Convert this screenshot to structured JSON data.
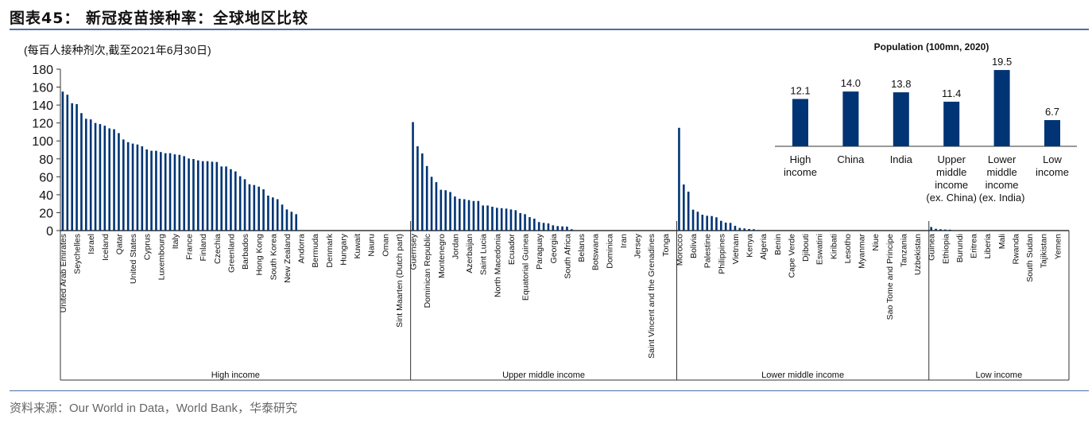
{
  "title": "图表45：  新冠疫苗接种率：全球地区比较",
  "unit_note": "(每百人接种剂次,截至2021年6月30日)",
  "source": "资料来源：Our World in Data，World Bank，华泰研究",
  "colors": {
    "bar": "#003474",
    "rule": "#4d6fa8",
    "axis": "#333333"
  },
  "chart_data": [
    {
      "type": "bar",
      "ylim": [
        0,
        180
      ],
      "yticks": [
        0,
        20,
        40,
        60,
        80,
        100,
        120,
        140,
        160,
        180
      ],
      "grid": false,
      "label_every": 3,
      "groups": [
        {
          "name": "High income",
          "slots": 75,
          "tick_labels": [
            "United Arab Emirates",
            "Seychelles",
            "Israel",
            "Iceland",
            "Qatar",
            "United States",
            "Cyprus",
            "Luxembourg",
            "Italy",
            "France",
            "Finland",
            "Czechia",
            "Greenland",
            "Barbados",
            "Hong Kong",
            "South Korea",
            "New Zealand",
            "Andorra",
            "Bermuda",
            "Denmark",
            "Hungary",
            "Kuwait",
            "Nauru",
            "Oman",
            "Sint Maarten (Dutch part)"
          ],
          "values": [
            155,
            151.5,
            142,
            141,
            131,
            124.7,
            124,
            120,
            118.8,
            117,
            114,
            113,
            108.7,
            101.6,
            98.6,
            97,
            96,
            94,
            90.5,
            89,
            89,
            87.6,
            86.3,
            86.3,
            85,
            84.5,
            83,
            80.4,
            79.8,
            78.3,
            77.4,
            77.4,
            76.8,
            76.5,
            71.5,
            71.5,
            68.5,
            66,
            60.6,
            57.3,
            51.7,
            50.8,
            49,
            46,
            39,
            37,
            35,
            29,
            23.6,
            21,
            18.3
          ]
        },
        {
          "name": "Upper middle income",
          "slots": 57,
          "tick_labels": [
            "Guernsey",
            "Dominican Republic",
            "Montenegro",
            "Jordan",
            "Azerbaijan",
            "Saint Lucia",
            "North Macedonia",
            "Ecuador",
            "Equatorial Guinea",
            "Paraguay",
            "Georgia",
            "South Africa",
            "Belarus",
            "Botswana",
            "Dominica",
            "Iran",
            "Jersey",
            "Saint Vincent and the Grenadines",
            "Tonga"
          ],
          "values": [
            121,
            94,
            86,
            72,
            60,
            54,
            45.5,
            45,
            43,
            38,
            35.5,
            35,
            34,
            33,
            33,
            28,
            28,
            26.6,
            25.4,
            25,
            24.5,
            23.6,
            22.7,
            19.5,
            18.3,
            15,
            13.3,
            9.5,
            8.6,
            8,
            5.9,
            5,
            4.7,
            4.4,
            1.5
          ]
        },
        {
          "name": "Lower middle income",
          "slots": 54,
          "tick_labels": [
            "Morocco",
            "Bolivia",
            "Palestine",
            "Philippines",
            "Vietnam",
            "Kenya",
            "Algeria",
            "Benin",
            "Cape Verde",
            "Djibouti",
            "Eswatini",
            "Kiribati",
            "Lesotho",
            "Myanmar",
            "Niue",
            "Sao Tome and Principe",
            "Tanzania",
            "Uzbekistan"
          ],
          "values": [
            114.6,
            51.4,
            43.4,
            23.3,
            21,
            17.7,
            16.5,
            16.2,
            14.8,
            10.9,
            8.9,
            8.6,
            5.3,
            3,
            2.4,
            1.8,
            1.5,
            0.6
          ]
        },
        {
          "name": "Low income",
          "slots": 30,
          "tick_labels": [
            "Guinea",
            "Ethiopia",
            "Burundi",
            "Eritrea",
            "Liberia",
            "Mali",
            "Rwanda",
            "South Sudan",
            "Tajikistan",
            "Yemen"
          ],
          "values": [
            4,
            2,
            1.5,
            1.2,
            1
          ]
        }
      ]
    },
    {
      "type": "bar",
      "title": "Population (100mn, 2020)",
      "categories": [
        [
          "High",
          "income"
        ],
        [
          "China"
        ],
        [
          "India"
        ],
        [
          "Upper",
          "middle",
          "income",
          "(ex. China)"
        ],
        [
          "Lower",
          "middle",
          "income",
          "(ex. India)"
        ],
        [
          "Low",
          "income"
        ]
      ],
      "values": [
        12.1,
        14.0,
        13.8,
        11.4,
        19.5,
        6.7
      ],
      "data_labels": [
        "12.1",
        "14.0",
        "13.8",
        "11.4",
        "19.5",
        "6.7"
      ],
      "grid": false
    }
  ]
}
